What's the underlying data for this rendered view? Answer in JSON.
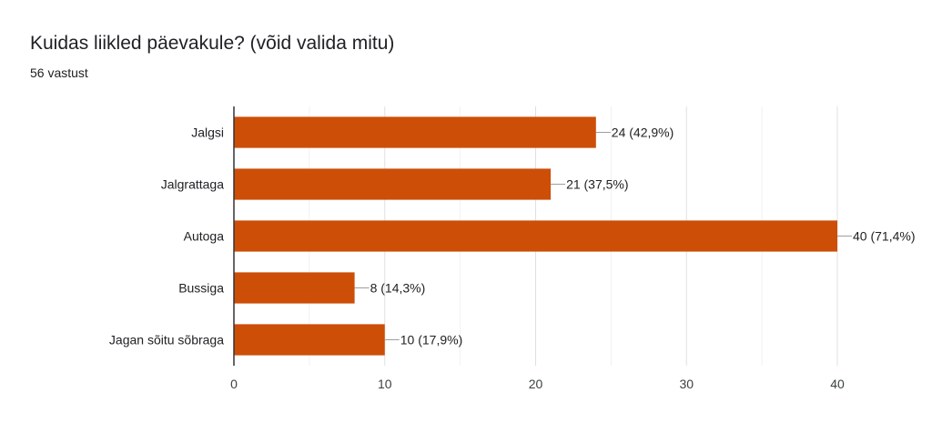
{
  "header": {
    "title": "Kuidas liikled päevakule? (võid valida mitu)",
    "subtitle": "56 vastust"
  },
  "chart_data": {
    "type": "bar",
    "orientation": "horizontal",
    "title": "Kuidas liikled päevakule? (võid valida mitu)",
    "subtitle": "56 vastust",
    "categories": [
      "Jalgsi",
      "Jalgrattaga",
      "Autoga",
      "Bussiga",
      "Jagan sõitu sõbraga"
    ],
    "values": [
      24,
      21,
      40,
      8,
      10
    ],
    "data_labels": [
      "24 (42,9%)",
      "21 (37,5%)",
      "40 (71,4%)",
      "8 (14,3%)",
      "10 (17,9%)"
    ],
    "xlim": [
      0,
      40
    ],
    "xticks": [
      0,
      10,
      20,
      30,
      40
    ],
    "grid": true,
    "legend": "none",
    "bar_color": "#cc4e07"
  }
}
